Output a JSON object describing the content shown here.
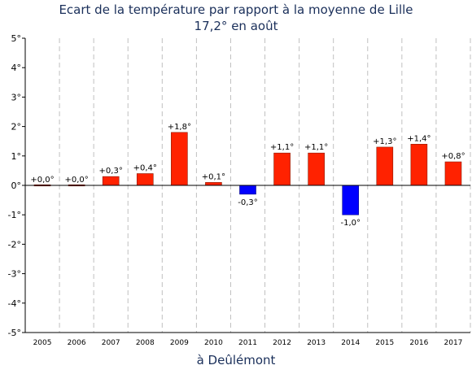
{
  "chart_data": {
    "type": "bar",
    "title": "Ecart de la température par rapport à la moyenne de Lille",
    "subtitle": "17,2° en août",
    "xlabel": "à Deûlémont",
    "ylabel": "",
    "categories": [
      "2005",
      "2006",
      "2007",
      "2008",
      "2009",
      "2010",
      "2011",
      "2012",
      "2013",
      "2014",
      "2015",
      "2016",
      "2017"
    ],
    "values": [
      0.0,
      0.0,
      0.3,
      0.4,
      1.8,
      0.1,
      -0.3,
      1.1,
      1.1,
      -1.0,
      1.3,
      1.4,
      0.8
    ],
    "data_labels": [
      "+0,0°",
      "+0,0°",
      "+0,3°",
      "+0,4°",
      "+1,8°",
      "+0,1°",
      "-0,3°",
      "+1,1°",
      "+1,1°",
      "-1,0°",
      "+1,3°",
      "+1,4°",
      "+0,8°"
    ],
    "ylim": [
      -5,
      5
    ],
    "yticks": [
      5,
      4,
      3,
      2,
      1,
      0,
      -1,
      -2,
      -3,
      -4,
      -5
    ],
    "ytick_labels": [
      "5°",
      "4°",
      "3°",
      "2°",
      "1°",
      "0°",
      "-1°",
      "-2°",
      "-3°",
      "-4°",
      "-5°"
    ],
    "grid": true,
    "colors": {
      "positive": "#ff2200",
      "negative": "#0000ff",
      "title": "#1a2f5a",
      "grid": "#c0c0c0"
    }
  }
}
